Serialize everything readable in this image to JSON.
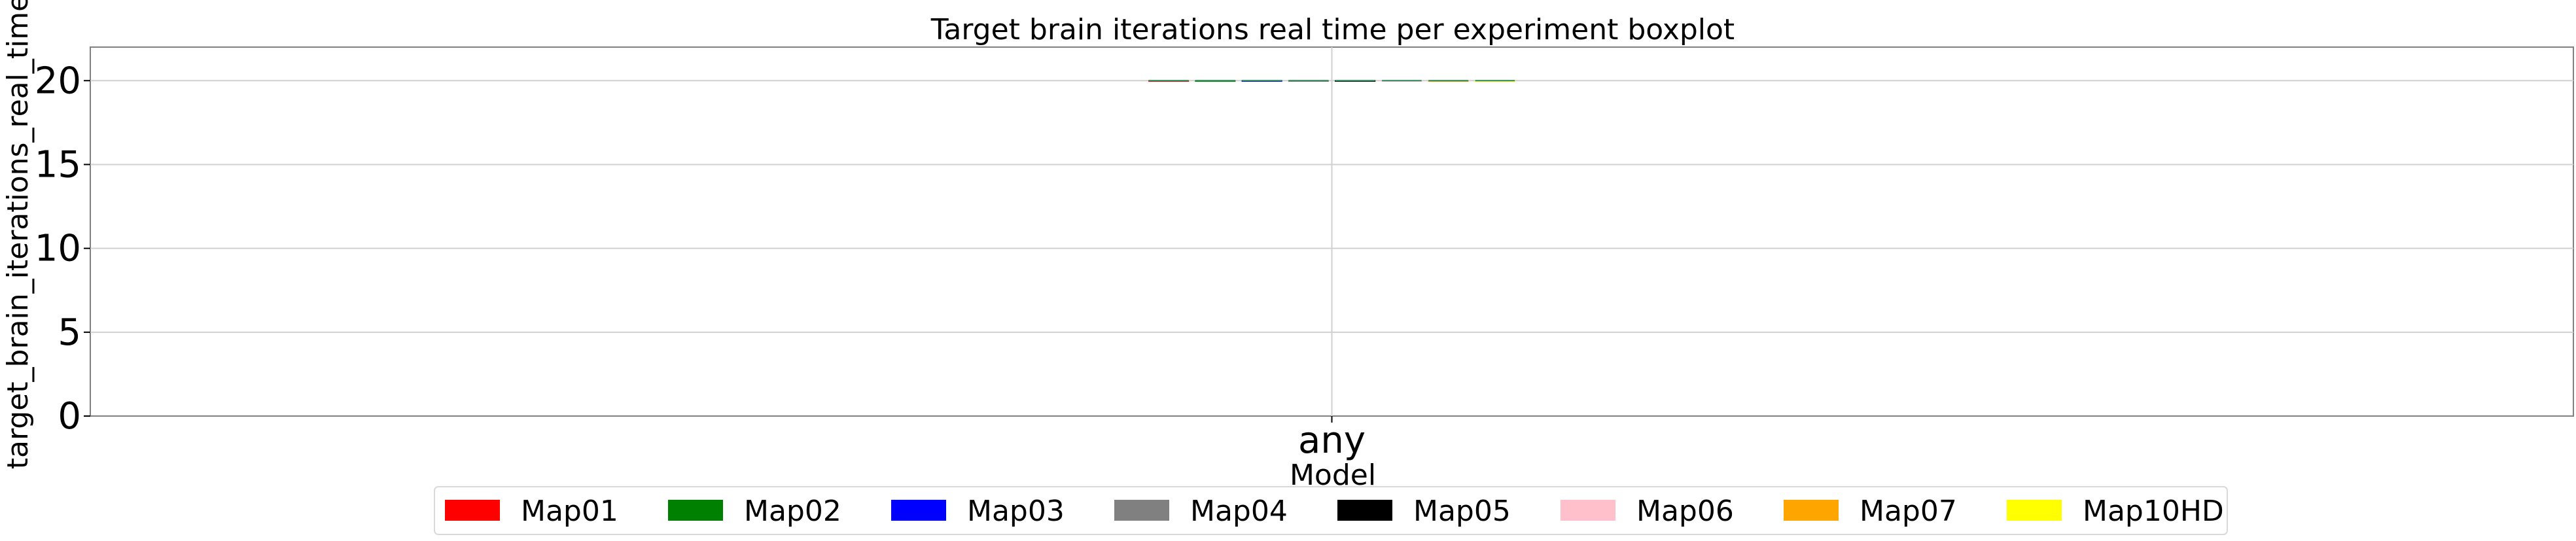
{
  "chart_data": {
    "type": "boxplot",
    "title": "Target brain iterations real time per experiment boxplot",
    "xlabel": "Model",
    "ylabel": "target_brain_iterations_real_time",
    "categories": [
      "any"
    ],
    "ylim": [
      0,
      22
    ],
    "yticks": [
      0,
      5,
      10,
      15,
      20
    ],
    "grid": true,
    "legend_position": "bottom-center",
    "series": [
      {
        "name": "Map01",
        "color": "#ff0000",
        "values": [
          20.0
        ]
      },
      {
        "name": "Map02",
        "color": "#008000",
        "values": [
          20.0
        ]
      },
      {
        "name": "Map03",
        "color": "#0000ff",
        "values": [
          20.0
        ]
      },
      {
        "name": "Map04",
        "color": "#808080",
        "values": [
          20.0
        ]
      },
      {
        "name": "Map05",
        "color": "#000000",
        "values": [
          20.0
        ]
      },
      {
        "name": "Map06",
        "color": "#ffc0cb",
        "values": [
          20.0
        ]
      },
      {
        "name": "Map07",
        "color": "#ffa500",
        "values": [
          20.0
        ]
      },
      {
        "name": "Map10HD",
        "color": "#ffff00",
        "values": [
          20.0
        ]
      }
    ]
  }
}
